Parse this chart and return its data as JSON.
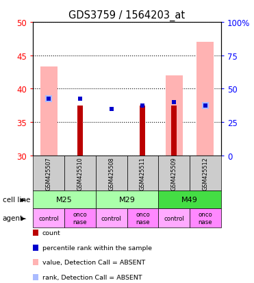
{
  "title": "GDS3759 / 1564203_at",
  "samples": [
    "GSM425507",
    "GSM425510",
    "GSM425508",
    "GSM425511",
    "GSM425509",
    "GSM425512"
  ],
  "agents": [
    "control",
    "onconase",
    "control",
    "onconase",
    "control",
    "onconase"
  ],
  "ymin": 30,
  "ymax": 50,
  "yticks_left": [
    30,
    35,
    40,
    45,
    50
  ],
  "yticks_right": [
    0,
    25,
    50,
    75,
    100
  ],
  "pink_bar_top": [
    43.3,
    null,
    null,
    null,
    42.0,
    47.0
  ],
  "red_bar_top": [
    null,
    37.5,
    null,
    37.5,
    37.5,
    null
  ],
  "blue_sq_y": [
    38.5,
    38.5,
    37.0,
    37.5,
    38.0,
    37.5
  ],
  "lightblue_y": [
    38.5,
    null,
    null,
    null,
    null,
    37.5
  ],
  "color_pink_bar": "#ffb3b3",
  "color_red_bar": "#bb0000",
  "color_blue_sq": "#0000cc",
  "color_lightblue": "#aabbff",
  "cell_line_groups": [
    {
      "label": "M25",
      "start": 0,
      "end": 2,
      "color": "#aaffaa"
    },
    {
      "label": "M29",
      "start": 2,
      "end": 4,
      "color": "#aaffaa"
    },
    {
      "label": "M49",
      "start": 4,
      "end": 6,
      "color": "#44dd44"
    }
  ],
  "agent_bg_colors": [
    "#ffaaff",
    "#ff88ff",
    "#ffaaff",
    "#ff88ff",
    "#ffaaff",
    "#ff88ff"
  ],
  "sample_bg_color": "#cccccc",
  "legend_items": [
    {
      "color": "#bb0000",
      "label": "count"
    },
    {
      "color": "#0000cc",
      "label": "percentile rank within the sample"
    },
    {
      "color": "#ffb3b3",
      "label": "value, Detection Call = ABSENT"
    },
    {
      "color": "#aabbff",
      "label": "rank, Detection Call = ABSENT"
    }
  ]
}
